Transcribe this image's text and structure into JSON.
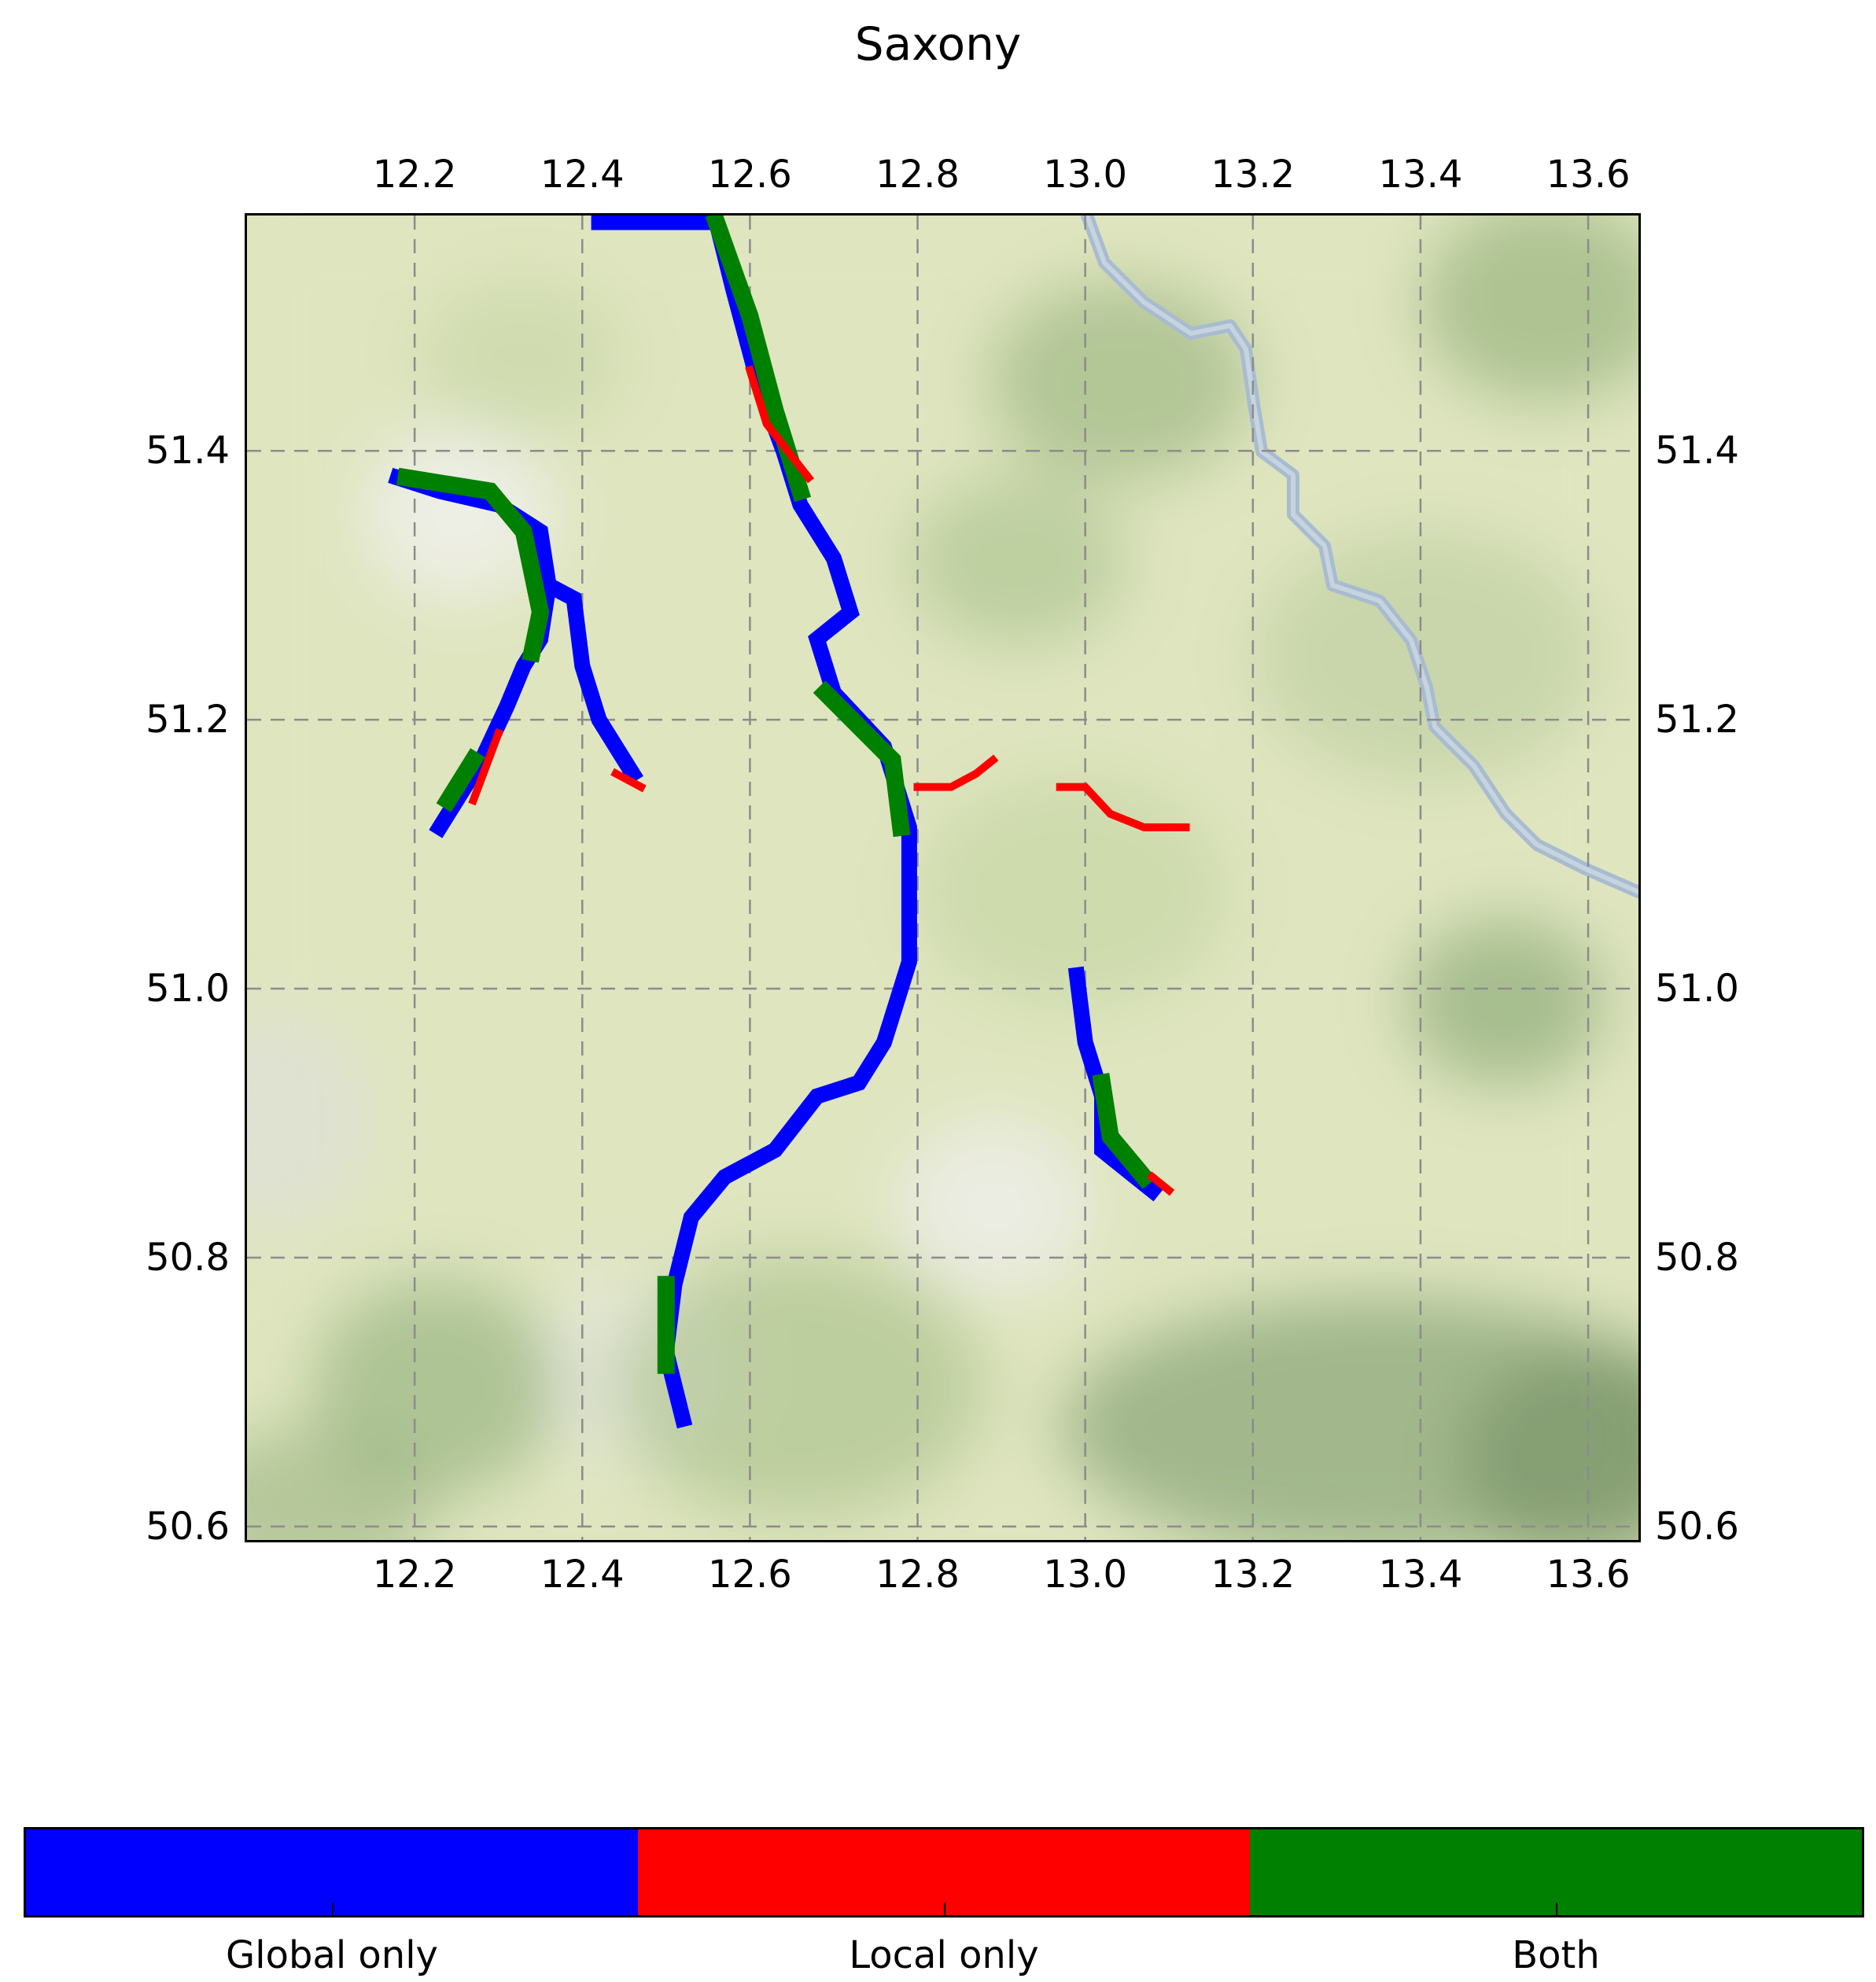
{
  "title": "Saxony",
  "axes": {
    "x_ticks": [
      "12.2",
      "12.4",
      "12.6",
      "12.8",
      "13.0",
      "13.2",
      "13.4",
      "13.6"
    ],
    "y_ticks": [
      "51.4",
      "51.2",
      "51.0",
      "50.8",
      "50.6"
    ],
    "xlim": [
      12.0,
      13.66
    ],
    "ylim": [
      50.59,
      51.575
    ],
    "grid": true,
    "tick_positions_labels": "top, bottom, left, right"
  },
  "basemap": "terrain relief with river",
  "legend": {
    "type": "colorbar",
    "placement": "bottom",
    "items": [
      {
        "label": "Global only",
        "color": "#0000ff"
      },
      {
        "label": "Local only",
        "color": "#ff0000"
      },
      {
        "label": "Both",
        "color": "#008000"
      }
    ]
  },
  "map_layers": [
    {
      "name": "Global only",
      "color": "#0000ff",
      "path": [
        [
          12.42,
          51.57
        ],
        [
          12.56,
          51.57
        ],
        [
          12.58,
          51.52
        ],
        [
          12.61,
          51.45
        ],
        [
          12.64,
          51.4
        ],
        [
          12.66,
          51.36
        ],
        [
          12.7,
          51.32
        ],
        [
          12.72,
          51.28
        ],
        [
          12.68,
          51.26
        ],
        [
          12.7,
          51.22
        ],
        [
          12.76,
          51.18
        ],
        [
          12.79,
          51.12
        ],
        [
          12.79,
          51.02
        ],
        [
          12.76,
          50.96
        ],
        [
          12.73,
          50.93
        ],
        [
          12.68,
          50.92
        ],
        [
          12.63,
          50.88
        ],
        [
          12.57,
          50.86
        ],
        [
          12.53,
          50.83
        ],
        [
          12.51,
          50.78
        ],
        [
          12.5,
          50.73
        ],
        [
          12.52,
          50.68
        ]
      ]
    },
    {
      "name": "Global only",
      "color": "#0000ff",
      "path": [
        [
          12.18,
          51.38
        ],
        [
          12.23,
          51.37
        ],
        [
          12.3,
          51.36
        ],
        [
          12.35,
          51.34
        ],
        [
          12.36,
          51.3
        ],
        [
          12.35,
          51.26
        ],
        [
          12.33,
          51.24
        ],
        [
          12.31,
          51.21
        ],
        [
          12.28,
          51.17
        ],
        [
          12.25,
          51.14
        ],
        [
          12.23,
          51.12
        ]
      ]
    },
    {
      "name": "Global only",
      "color": "#0000ff",
      "path": [
        [
          12.36,
          51.3
        ],
        [
          12.39,
          51.29
        ],
        [
          12.4,
          51.24
        ],
        [
          12.42,
          51.2
        ],
        [
          12.46,
          51.16
        ]
      ]
    },
    {
      "name": "Global only",
      "color": "#0000ff",
      "path": [
        [
          12.99,
          51.01
        ],
        [
          13.0,
          50.96
        ],
        [
          13.02,
          50.92
        ],
        [
          13.02,
          50.88
        ],
        [
          13.06,
          50.86
        ],
        [
          13.08,
          50.85
        ]
      ]
    }
  ],
  "both_segments": [
    {
      "path": [
        [
          12.56,
          51.57
        ],
        [
          12.6,
          51.5
        ],
        [
          12.63,
          51.43
        ],
        [
          12.66,
          51.37
        ]
      ]
    },
    {
      "path": [
        [
          12.19,
          51.38
        ],
        [
          12.29,
          51.37
        ],
        [
          12.33,
          51.34
        ],
        [
          12.35,
          51.28
        ],
        [
          12.34,
          51.25
        ]
      ]
    },
    {
      "path": [
        [
          12.27,
          51.17
        ],
        [
          12.24,
          51.14
        ]
      ]
    },
    {
      "path": [
        [
          12.69,
          51.22
        ],
        [
          12.77,
          51.17
        ],
        [
          12.78,
          51.12
        ]
      ]
    },
    {
      "path": [
        [
          13.02,
          50.93
        ],
        [
          13.03,
          50.89
        ],
        [
          13.07,
          50.86
        ]
      ]
    },
    {
      "path": [
        [
          12.5,
          50.78
        ],
        [
          12.5,
          50.72
        ]
      ]
    }
  ],
  "local_segments": [
    {
      "path": [
        [
          12.6,
          51.46
        ],
        [
          12.62,
          51.42
        ],
        [
          12.67,
          51.38
        ]
      ]
    },
    {
      "path": [
        [
          12.8,
          51.15
        ],
        [
          12.84,
          51.15
        ],
        [
          12.87,
          51.16
        ],
        [
          12.89,
          51.17
        ]
      ]
    },
    {
      "path": [
        [
          12.97,
          51.15
        ],
        [
          13.0,
          51.15
        ],
        [
          13.03,
          51.13
        ],
        [
          13.07,
          51.12
        ],
        [
          13.12,
          51.12
        ]
      ]
    },
    {
      "path": [
        [
          12.44,
          51.16
        ],
        [
          12.47,
          51.15
        ]
      ]
    },
    {
      "path": [
        [
          12.3,
          51.19
        ],
        [
          12.27,
          51.14
        ]
      ]
    },
    {
      "path": [
        [
          13.08,
          50.86
        ],
        [
          13.1,
          50.85
        ]
      ]
    }
  ]
}
